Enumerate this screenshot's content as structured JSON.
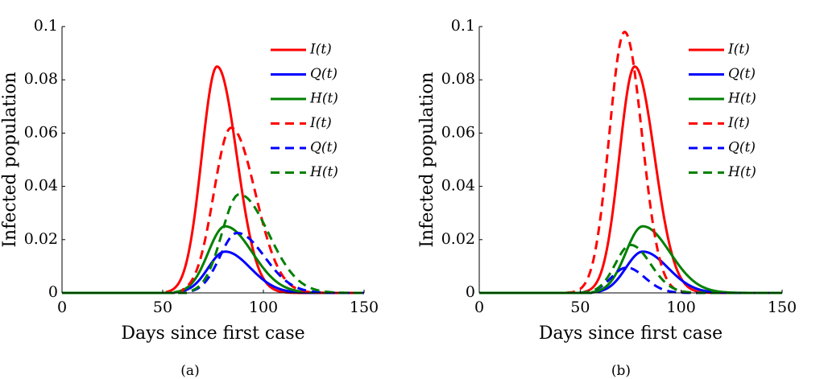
{
  "figure": {
    "captions": [
      "(a)",
      "(b)"
    ]
  },
  "chart_data": [
    {
      "type": "line",
      "xlabel": "Days since first case",
      "ylabel": "Infected population",
      "xlim": [
        0,
        150
      ],
      "ylim": [
        0,
        0.1
      ],
      "xticks": [
        "0",
        "50",
        "100",
        "150"
      ],
      "yticks": [
        "0",
        "0.02",
        "0.04",
        "0.06",
        "0.08",
        "0.1"
      ],
      "grid": false,
      "legend_position": "top-right",
      "series": [
        {
          "name": "I(t)",
          "color": "#ff0000",
          "dash": "solid",
          "peak_x": 77,
          "peak_y": 0.085,
          "sigma_left": 7.6,
          "sigma_right": 9.8,
          "onset_x": 52
        },
        {
          "name": "Q(t)",
          "color": "#0000ff",
          "dash": "solid",
          "peak_x": 81,
          "peak_y": 0.0155,
          "sigma_left": 8.4,
          "sigma_right": 12.5,
          "onset_x": 56
        },
        {
          "name": "H(t)",
          "color": "#008000",
          "dash": "solid",
          "peak_x": 81,
          "peak_y": 0.025,
          "sigma_left": 8.4,
          "sigma_right": 13.5,
          "onset_x": 56
        },
        {
          "name": "I(t)",
          "color": "#ff0000",
          "dash": "dashed",
          "peak_x": 84,
          "peak_y": 0.062,
          "sigma_left": 8.6,
          "sigma_right": 12.0,
          "onset_x": 60
        },
        {
          "name": "Q(t)",
          "color": "#0000ff",
          "dash": "dashed",
          "peak_x": 87,
          "peak_y": 0.0225,
          "sigma_left": 8.6,
          "sigma_right": 13.5,
          "onset_x": 63
        },
        {
          "name": "H(t)",
          "color": "#008000",
          "dash": "dashed",
          "peak_x": 88,
          "peak_y": 0.037,
          "sigma_left": 8.6,
          "sigma_right": 14.5,
          "onset_x": 63
        }
      ]
    },
    {
      "type": "line",
      "xlabel": "Days since first case",
      "ylabel": "Infected population",
      "xlim": [
        0,
        150
      ],
      "ylim": [
        0,
        0.1
      ],
      "xticks": [
        "0",
        "50",
        "100",
        "150"
      ],
      "yticks": [
        "0",
        "0.02",
        "0.04",
        "0.06",
        "0.08",
        "0.1"
      ],
      "grid": false,
      "legend_position": "top-right",
      "series": [
        {
          "name": "I(t)",
          "color": "#ff0000",
          "dash": "solid",
          "peak_x": 77,
          "peak_y": 0.085,
          "sigma_left": 7.6,
          "sigma_right": 9.8,
          "onset_x": 52
        },
        {
          "name": "Q(t)",
          "color": "#0000ff",
          "dash": "solid",
          "peak_x": 81,
          "peak_y": 0.0155,
          "sigma_left": 8.4,
          "sigma_right": 12.5,
          "onset_x": 56
        },
        {
          "name": "H(t)",
          "color": "#008000",
          "dash": "solid",
          "peak_x": 81,
          "peak_y": 0.025,
          "sigma_left": 8.4,
          "sigma_right": 13.5,
          "onset_x": 56
        },
        {
          "name": "I(t)",
          "color": "#ff0000",
          "dash": "dashed",
          "peak_x": 72,
          "peak_y": 0.098,
          "sigma_left": 7.6,
          "sigma_right": 8.6,
          "onset_x": 43
        },
        {
          "name": "Q(t)",
          "color": "#0000ff",
          "dash": "dashed",
          "peak_x": 73,
          "peak_y": 0.0095,
          "sigma_left": 7.6,
          "sigma_right": 9.0,
          "onset_x": 50
        },
        {
          "name": "H(t)",
          "color": "#008000",
          "dash": "dashed",
          "peak_x": 75,
          "peak_y": 0.018,
          "sigma_left": 7.6,
          "sigma_right": 9.8,
          "onset_x": 50
        }
      ]
    }
  ]
}
